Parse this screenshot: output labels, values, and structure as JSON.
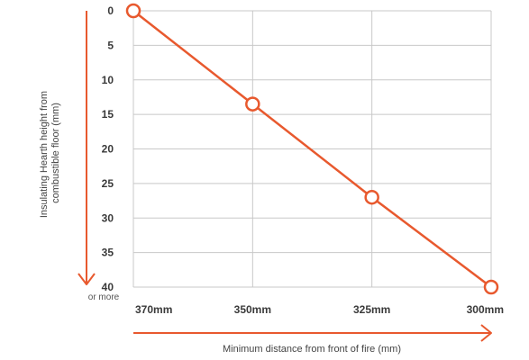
{
  "chart_data": {
    "type": "line",
    "categories": [
      "370mm",
      "350mm",
      "325mm",
      "300mm"
    ],
    "x_values": [
      370,
      350,
      325,
      300
    ],
    "values": [
      0,
      13.5,
      27,
      40
    ],
    "y_ticks": [
      "0",
      "5",
      "10",
      "15",
      "20",
      "25",
      "30",
      "35",
      "40"
    ],
    "y_note": "or more",
    "ylim": [
      0,
      40
    ],
    "y_inverted": true,
    "ylabel_lines": [
      "Insulating Hearth height from",
      "combustible floor (mm)"
    ],
    "xlabel": "Minimum distance from front of fire (mm)",
    "grid": true,
    "colors": {
      "line": "#e8592e",
      "marker_fill": "#ffffff",
      "grid": "#c8c8c8",
      "arrow": "#e8592e"
    }
  }
}
